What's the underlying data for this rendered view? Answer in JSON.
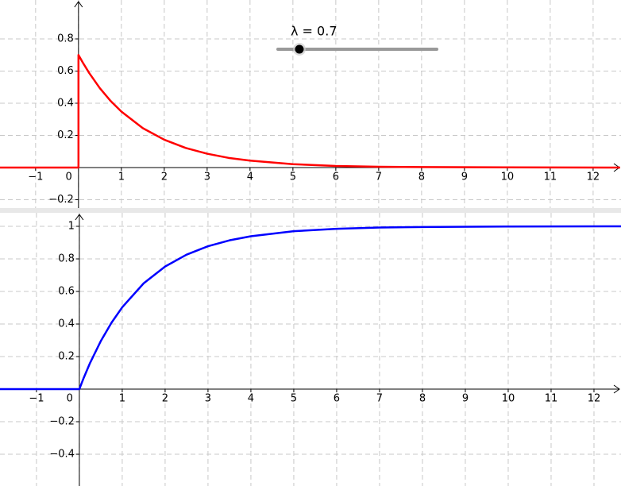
{
  "chart_data": [
    {
      "type": "line",
      "annotation": "λ = 0.7",
      "color": "#ff0000",
      "grid": true,
      "x": [
        -1.85,
        0,
        0,
        0.1,
        0.25,
        0.5,
        0.75,
        1,
        1.5,
        2,
        2.5,
        3,
        3.5,
        4,
        5,
        6,
        7,
        8,
        10,
        12.63
      ],
      "values": [
        0,
        0,
        0.7,
        0.653,
        0.588,
        0.493,
        0.414,
        0.348,
        0.245,
        0.173,
        0.122,
        0.086,
        0.06,
        0.043,
        0.021,
        0.01,
        0.005,
        0.003,
        0.001,
        0
      ],
      "xlim": [
        -1.83,
        12.65
      ],
      "ylim": [
        -0.252,
        1.042
      ],
      "xticks": [
        {
          "value": -1,
          "label": "−1"
        },
        0,
        1,
        2,
        3,
        4,
        5,
        6,
        7,
        8,
        9,
        10,
        11,
        12
      ],
      "yticks": [
        {
          "value": -0.2,
          "label": "−0.2"
        },
        0.2,
        0.4,
        0.6,
        0.8
      ]
    },
    {
      "type": "line",
      "color": "#0000ff",
      "grid": true,
      "x": [
        -1.85,
        0,
        0.1,
        0.25,
        0.5,
        0.75,
        1,
        1.5,
        2,
        2.5,
        3,
        3.5,
        4,
        5,
        6,
        7,
        8,
        10,
        12.63
      ],
      "values": [
        0,
        0,
        0.068,
        0.161,
        0.295,
        0.408,
        0.503,
        0.65,
        0.753,
        0.826,
        0.878,
        0.914,
        0.939,
        0.97,
        0.985,
        0.993,
        0.996,
        0.999,
        1
      ],
      "xlim": [
        -1.85,
        12.63
      ],
      "ylim": [
        -0.595,
        1.083
      ],
      "xticks": [
        {
          "value": -1,
          "label": "−1"
        },
        0,
        1,
        2,
        3,
        4,
        5,
        6,
        7,
        8,
        9,
        10,
        11,
        12
      ],
      "yticks": [
        {
          "value": -0.4,
          "label": "−0.4"
        },
        {
          "value": -0.2,
          "label": "−0.2"
        },
        0.2,
        0.4,
        0.6,
        0.8,
        1
      ]
    }
  ]
}
